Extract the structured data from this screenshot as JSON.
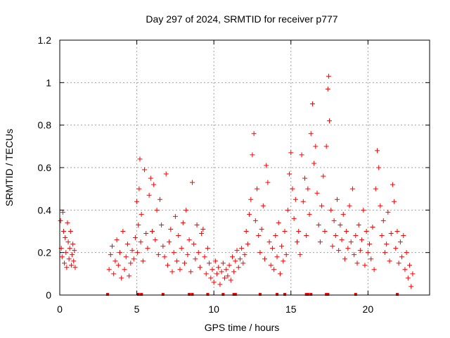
{
  "chart_data": {
    "type": "scatter",
    "title": "Day 297 of 2024, SRMTID for receiver p777",
    "xlabel": "GPS time / hours",
    "ylabel": "SRMTID / TECUs",
    "xlim": [
      0,
      24
    ],
    "ylim": [
      0,
      1.2
    ],
    "xticks": [
      0,
      5,
      10,
      15,
      20
    ],
    "xtick_labels": [
      "0",
      "5",
      "10",
      "15",
      "20"
    ],
    "yticks": [
      0,
      0.2,
      0.4,
      0.6,
      0.8,
      1.0,
      1.2
    ],
    "ytick_labels": [
      "0",
      "0.2",
      "0.4",
      "0.6",
      "0.8",
      "1",
      "1.2"
    ],
    "grid": true,
    "marker": "+",
    "color": "#ff0000",
    "series": [
      {
        "name": "SRMTID",
        "points": [
          [
            0.05,
            0.35
          ],
          [
            0.1,
            0.22
          ],
          [
            0.15,
            0.18
          ],
          [
            0.2,
            0.39
          ],
          [
            0.25,
            0.3
          ],
          [
            0.3,
            0.15
          ],
          [
            0.35,
            0.27
          ],
          [
            0.4,
            0.2
          ],
          [
            0.45,
            0.13
          ],
          [
            0.5,
            0.34
          ],
          [
            0.55,
            0.25
          ],
          [
            0.6,
            0.17
          ],
          [
            0.65,
            0.22
          ],
          [
            0.7,
            0.3
          ],
          [
            0.75,
            0.14
          ],
          [
            0.8,
            0.19
          ],
          [
            0.85,
            0.24
          ],
          [
            0.9,
            0.16
          ],
          [
            0.95,
            0.21
          ],
          [
            1.0,
            0.13
          ],
          [
            3.2,
            0.12
          ],
          [
            3.3,
            0.19
          ],
          [
            3.4,
            0.23
          ],
          [
            3.5,
            0.1
          ],
          [
            3.6,
            0.16
          ],
          [
            3.7,
            0.26
          ],
          [
            3.8,
            0.14
          ],
          [
            3.9,
            0.2
          ],
          [
            4.0,
            0.08
          ],
          [
            4.1,
            0.3
          ],
          [
            4.2,
            0.12
          ],
          [
            4.3,
            0.18
          ],
          [
            4.4,
            0.24
          ],
          [
            4.5,
            0.09
          ],
          [
            4.6,
            0.15
          ],
          [
            4.7,
            0.21
          ],
          [
            4.8,
            0.17
          ],
          [
            4.9,
            0.27
          ],
          [
            5.0,
            0.44
          ],
          [
            5.05,
            0.2
          ],
          [
            5.1,
            0.33
          ],
          [
            5.15,
            0.5
          ],
          [
            5.2,
            0.64
          ],
          [
            5.25,
            0.25
          ],
          [
            5.3,
            0.38
          ],
          [
            5.4,
            0.16
          ],
          [
            5.5,
            0.59
          ],
          [
            5.6,
            0.29
          ],
          [
            5.7,
            0.22
          ],
          [
            5.8,
            0.47
          ],
          [
            5.9,
            0.55
          ],
          [
            6.0,
            0.3
          ],
          [
            6.1,
            0.52
          ],
          [
            6.2,
            0.26
          ],
          [
            6.3,
            0.4
          ],
          [
            6.4,
            0.19
          ],
          [
            6.5,
            0.45
          ],
          [
            6.6,
            0.33
          ],
          [
            6.7,
            0.23
          ],
          [
            6.8,
            0.18
          ],
          [
            6.9,
            0.57
          ],
          [
            7.0,
            0.14
          ],
          [
            7.1,
            0.25
          ],
          [
            7.2,
            0.31
          ],
          [
            7.3,
            0.11
          ],
          [
            7.4,
            0.2
          ],
          [
            7.5,
            0.37
          ],
          [
            7.6,
            0.16
          ],
          [
            7.7,
            0.28
          ],
          [
            7.8,
            0.12
          ],
          [
            7.9,
            0.22
          ],
          [
            8.0,
            0.34
          ],
          [
            8.1,
            0.15
          ],
          [
            8.2,
            0.4
          ],
          [
            8.3,
            0.19
          ],
          [
            8.4,
            0.26
          ],
          [
            8.5,
            0.11
          ],
          [
            8.6,
            0.53
          ],
          [
            8.7,
            0.24
          ],
          [
            8.8,
            0.17
          ],
          [
            8.9,
            0.33
          ],
          [
            9.0,
            0.2
          ],
          [
            9.1,
            0.13
          ],
          [
            9.2,
            0.29
          ],
          [
            9.3,
            0.31
          ],
          [
            9.4,
            0.18
          ],
          [
            9.5,
            0.1
          ],
          [
            9.6,
            0.22
          ],
          [
            9.7,
            0.15
          ],
          [
            9.8,
            0.08
          ],
          [
            9.9,
            0.12
          ],
          [
            10.0,
            0.06
          ],
          [
            10.1,
            0.16
          ],
          [
            10.2,
            0.1
          ],
          [
            10.3,
            0.13
          ],
          [
            10.4,
            0.05
          ],
          [
            10.5,
            0.11
          ],
          [
            10.6,
            0.15
          ],
          [
            10.7,
            0.08
          ],
          [
            10.8,
            0.12
          ],
          [
            10.9,
            0.09
          ],
          [
            11.0,
            0.14
          ],
          [
            11.1,
            0.07
          ],
          [
            11.2,
            0.18
          ],
          [
            11.3,
            0.11
          ],
          [
            11.4,
            0.16
          ],
          [
            11.5,
            0.21
          ],
          [
            11.6,
            0.13
          ],
          [
            11.7,
            0.17
          ],
          [
            11.8,
            0.22
          ],
          [
            11.9,
            0.15
          ],
          [
            12.0,
            0.19
          ],
          [
            12.1,
            0.3
          ],
          [
            12.2,
            0.24
          ],
          [
            12.3,
            0.38
          ],
          [
            12.4,
            0.45
          ],
          [
            12.5,
            0.66
          ],
          [
            12.6,
            0.76
          ],
          [
            12.7,
            0.35
          ],
          [
            12.8,
            0.5
          ],
          [
            12.9,
            0.28
          ],
          [
            13.0,
            0.2
          ],
          [
            13.1,
            0.31
          ],
          [
            13.2,
            0.42
          ],
          [
            13.3,
            0.17
          ],
          [
            13.4,
            0.61
          ],
          [
            13.5,
            0.53
          ],
          [
            13.6,
            0.25
          ],
          [
            13.7,
            0.14
          ],
          [
            13.8,
            0.22
          ],
          [
            13.9,
            0.12
          ],
          [
            14.0,
            0.28
          ],
          [
            14.1,
            0.18
          ],
          [
            14.2,
            0.34
          ],
          [
            14.3,
            0.1
          ],
          [
            14.4,
            0.23
          ],
          [
            14.5,
            0.16
          ],
          [
            14.6,
            0.3
          ],
          [
            14.7,
            0.19
          ],
          [
            14.8,
            0.4
          ],
          [
            14.9,
            0.57
          ],
          [
            15.0,
            0.67
          ],
          [
            15.1,
            0.5
          ],
          [
            15.2,
            0.36
          ],
          [
            15.3,
            0.45
          ],
          [
            15.4,
            0.25
          ],
          [
            15.5,
            0.3
          ],
          [
            15.6,
            0.19
          ],
          [
            15.7,
            0.66
          ],
          [
            15.8,
            0.44
          ],
          [
            15.9,
            0.55
          ],
          [
            16.0,
            0.28
          ],
          [
            16.1,
            0.5
          ],
          [
            16.2,
            0.38
          ],
          [
            16.3,
            0.76
          ],
          [
            16.4,
            0.9
          ],
          [
            16.5,
            0.62
          ],
          [
            16.6,
            0.7
          ],
          [
            16.7,
            0.48
          ],
          [
            16.8,
            0.33
          ],
          [
            16.9,
            0.25
          ],
          [
            17.0,
            0.42
          ],
          [
            17.1,
            0.56
          ],
          [
            17.2,
            0.3
          ],
          [
            17.3,
            0.7
          ],
          [
            17.4,
            0.97
          ],
          [
            17.45,
            1.03
          ],
          [
            17.5,
            0.82
          ],
          [
            17.6,
            0.4
          ],
          [
            17.7,
            0.23
          ],
          [
            17.8,
            0.35
          ],
          [
            17.9,
            0.28
          ],
          [
            18.0,
            0.45
          ],
          [
            18.1,
            0.21
          ],
          [
            18.2,
            0.33
          ],
          [
            18.3,
            0.26
          ],
          [
            18.4,
            0.38
          ],
          [
            18.5,
            0.17
          ],
          [
            18.6,
            0.3
          ],
          [
            18.7,
            0.22
          ],
          [
            18.8,
            0.42
          ],
          [
            18.9,
            0.25
          ],
          [
            19.0,
            0.5
          ],
          [
            19.1,
            0.19
          ],
          [
            19.2,
            0.28
          ],
          [
            19.3,
            0.15
          ],
          [
            19.4,
            0.33
          ],
          [
            19.5,
            0.21
          ],
          [
            19.6,
            0.26
          ],
          [
            19.7,
            0.4
          ],
          [
            19.8,
            0.14
          ],
          [
            19.9,
            0.3
          ],
          [
            20.0,
            0.2
          ],
          [
            20.1,
            0.24
          ],
          [
            20.2,
            0.17
          ],
          [
            20.3,
            0.32
          ],
          [
            20.4,
            0.12
          ],
          [
            20.5,
            0.5
          ],
          [
            20.6,
            0.68
          ],
          [
            20.7,
            0.6
          ],
          [
            20.8,
            0.42
          ],
          [
            20.9,
            0.28
          ],
          [
            21.0,
            0.35
          ],
          [
            21.1,
            0.2
          ],
          [
            21.2,
            0.24
          ],
          [
            21.3,
            0.39
          ],
          [
            21.4,
            0.16
          ],
          [
            21.5,
            0.29
          ],
          [
            21.6,
            0.52
          ],
          [
            21.7,
            0.44
          ],
          [
            21.8,
            0.22
          ],
          [
            21.9,
            0.3
          ],
          [
            22.0,
            0.15
          ],
          [
            22.1,
            0.25
          ],
          [
            22.2,
            0.18
          ],
          [
            22.3,
            0.28
          ],
          [
            22.4,
            0.12
          ],
          [
            22.5,
            0.2
          ],
          [
            22.6,
            0.08
          ],
          [
            22.7,
            0.14
          ],
          [
            22.8,
            0.04
          ],
          [
            22.9,
            0.1
          ]
        ]
      }
    ],
    "baseline_marks_x": [
      3.1,
      5.1,
      5.3,
      6.7,
      8.4,
      8.6,
      9.6,
      10.6,
      11.3,
      11.4,
      13.0,
      14.1,
      14.6,
      16.0,
      16.1,
      16.3,
      17.3,
      17.4,
      19.2,
      21.9
    ]
  }
}
